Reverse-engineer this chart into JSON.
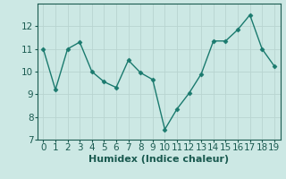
{
  "x": [
    0,
    1,
    2,
    3,
    4,
    5,
    6,
    7,
    8,
    9,
    10,
    11,
    12,
    13,
    14,
    15,
    16,
    17,
    18,
    19
  ],
  "y": [
    11.0,
    9.2,
    11.0,
    11.3,
    10.0,
    9.55,
    9.3,
    10.5,
    9.95,
    9.65,
    7.45,
    8.35,
    9.05,
    9.9,
    11.35,
    11.35,
    11.85,
    12.5,
    11.0,
    10.25
  ],
  "line_color": "#1a7a6e",
  "marker": "D",
  "marker_size": 2.5,
  "bg_color": "#cce8e4",
  "grid_color": "#b8d4d0",
  "xlabel": "Humidex (Indice chaleur)",
  "ylim": [
    7,
    13
  ],
  "xlim": [
    -0.5,
    19.5
  ],
  "yticks": [
    7,
    8,
    9,
    10,
    11,
    12
  ],
  "xticks": [
    0,
    1,
    2,
    3,
    4,
    5,
    6,
    7,
    8,
    9,
    10,
    11,
    12,
    13,
    14,
    15,
    16,
    17,
    18,
    19
  ],
  "font_size": 7.5,
  "xlabel_fontsize": 8,
  "tick_color": "#1a5a50",
  "spine_color": "#1a5a50",
  "line_width": 1.0
}
